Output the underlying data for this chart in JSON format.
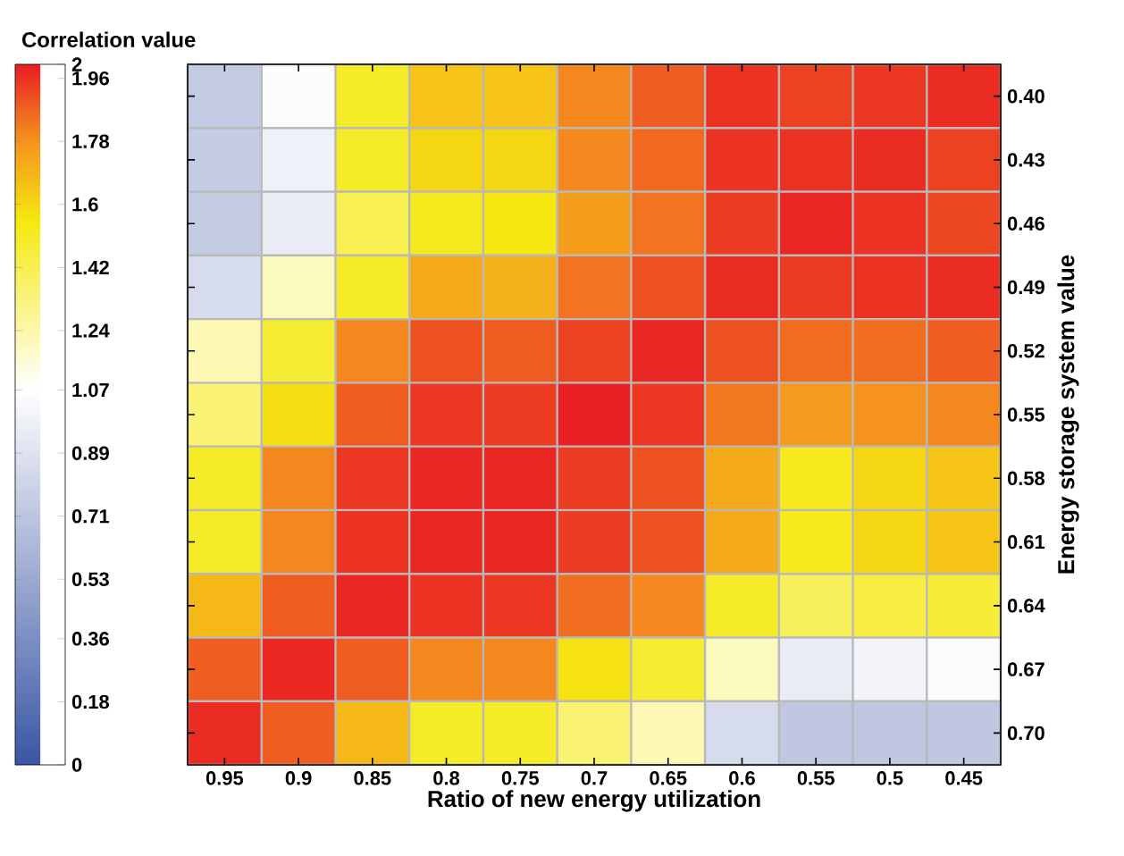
{
  "chart_data": {
    "type": "heatmap",
    "xlabel": "Ratio of new energy utilization",
    "ylabel": "Energy storage system value",
    "clabel": "Correlation value",
    "categories": [
      "0.95",
      "0.9",
      "0.85",
      "0.8",
      "0.75",
      "0.7",
      "0.65",
      "0.6",
      "0.55",
      "0.5",
      "0.45"
    ],
    "y_categories": [
      "0.40",
      "0.43",
      "0.46",
      "0.49",
      "0.52",
      "0.55",
      "0.58",
      "0.61",
      "0.64",
      "0.67",
      "0.70"
    ],
    "cells": [
      [
        0.75,
        1.05,
        1.5,
        1.65,
        1.65,
        1.8,
        1.88,
        1.96,
        1.93,
        1.95,
        1.97
      ],
      [
        0.75,
        0.98,
        1.5,
        1.6,
        1.6,
        1.8,
        1.86,
        1.96,
        1.96,
        1.97,
        1.93
      ],
      [
        0.75,
        0.95,
        1.42,
        1.52,
        1.55,
        1.75,
        1.84,
        1.94,
        1.98,
        1.96,
        1.92
      ],
      [
        0.85,
        1.2,
        1.5,
        1.72,
        1.7,
        1.84,
        1.9,
        1.97,
        1.94,
        1.96,
        1.97
      ],
      [
        1.22,
        1.48,
        1.8,
        1.9,
        1.88,
        1.93,
        1.98,
        1.9,
        1.85,
        1.85,
        1.88
      ],
      [
        1.35,
        1.58,
        1.88,
        1.95,
        1.94,
        1.99,
        1.95,
        1.83,
        1.76,
        1.78,
        1.8
      ],
      [
        1.5,
        1.8,
        1.95,
        1.98,
        1.98,
        1.94,
        1.9,
        1.72,
        1.52,
        1.6,
        1.65
      ],
      [
        1.5,
        1.8,
        1.96,
        1.98,
        1.98,
        1.94,
        1.9,
        1.72,
        1.52,
        1.6,
        1.65
      ],
      [
        1.68,
        1.88,
        1.98,
        1.96,
        1.95,
        1.85,
        1.8,
        1.5,
        1.4,
        1.45,
        1.47
      ],
      [
        1.88,
        1.98,
        1.88,
        1.8,
        1.8,
        1.57,
        1.48,
        1.2,
        0.95,
        1.0,
        1.05
      ],
      [
        1.97,
        1.88,
        1.68,
        1.5,
        1.5,
        1.35,
        1.22,
        0.85,
        0.72,
        0.72,
        0.72
      ]
    ],
    "clim": [
      0,
      2
    ],
    "cticks": [
      0,
      0.18,
      0.36,
      0.53,
      0.71,
      0.89,
      1.07,
      1.24,
      1.42,
      1.6,
      1.78,
      1.96,
      2
    ]
  }
}
